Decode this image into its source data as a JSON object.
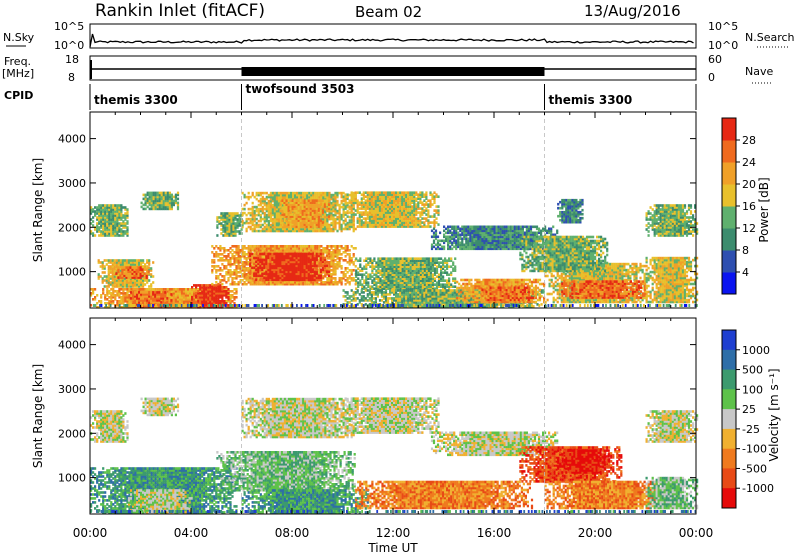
{
  "header": {
    "title": "Rankin Inlet (fitACF)",
    "beam": "Beam 02",
    "date": "13/Aug/2016"
  },
  "panels": {
    "nsky_label": "N.Sky",
    "nsky_ticks": [
      "10^5",
      "10^0"
    ],
    "nsearch_label": "N.Search",
    "nsearch_ticks": [
      "10^5",
      "10^0"
    ],
    "freq_label_1": "Freq.",
    "freq_label_2": "[MHz]",
    "freq_ticks": [
      "18",
      "8"
    ],
    "nave_label": "Nave",
    "nave_ticks": [
      "60",
      "0"
    ],
    "cpid_label": "CPID",
    "cpid_segments": [
      {
        "name": "themis 3300",
        "start_h": 0,
        "end_h": 6
      },
      {
        "name": "twofsound 3503",
        "start_h": 6,
        "end_h": 18
      },
      {
        "name": "themis 3300",
        "start_h": 18,
        "end_h": 24
      }
    ]
  },
  "chart_data": [
    {
      "type": "heatmap",
      "title": "",
      "xlabel": "Time UT",
      "ylabel": "Slant Range [km]",
      "xlim": [
        0,
        24
      ],
      "ylim": [
        180,
        4600
      ],
      "xticks": [
        "00:00",
        "04:00",
        "08:00",
        "12:00",
        "16:00",
        "20:00",
        "00:00"
      ],
      "yticks": [
        1000,
        2000,
        3000,
        4000
      ],
      "colorbar": {
        "label": "Power [dB]",
        "ticks": [
          "4",
          "8",
          "12",
          "16",
          "20",
          "24",
          "28"
        ],
        "colors": [
          "#0a14f0",
          "#2e4fb0",
          "#3c8c6e",
          "#5fb06e",
          "#e8c02c",
          "#f0a028",
          "#ef6a1e",
          "#e62814"
        ]
      },
      "regions": [
        {
          "t0": 0.0,
          "t1": 5.8,
          "r0": 180,
          "r1": 600,
          "level": 5
        },
        {
          "t0": 4.0,
          "t1": 5.5,
          "r0": 180,
          "r1": 700,
          "level": 7
        },
        {
          "t0": 1.5,
          "t1": 3.2,
          "r0": 200,
          "r1": 550,
          "level": 6
        },
        {
          "t0": 0.3,
          "t1": 2.5,
          "r0": 650,
          "r1": 1250,
          "level": 4
        },
        {
          "t0": 1.0,
          "t1": 2.3,
          "r0": 850,
          "r1": 1100,
          "level": 6
        },
        {
          "t0": 0.0,
          "t1": 1.5,
          "r0": 1800,
          "r1": 2500,
          "level": 3
        },
        {
          "t0": 2.0,
          "t1": 3.5,
          "r0": 2400,
          "r1": 2800,
          "level": 3
        },
        {
          "t0": 5.0,
          "t1": 6.0,
          "r0": 1800,
          "r1": 2300,
          "level": 3
        },
        {
          "t0": 4.8,
          "t1": 10.5,
          "r0": 700,
          "r1": 1600,
          "level": 5
        },
        {
          "t0": 6.3,
          "t1": 9.5,
          "r0": 800,
          "r1": 1400,
          "level": 7
        },
        {
          "t0": 6.0,
          "t1": 10.5,
          "r0": 1900,
          "r1": 2800,
          "level": 4
        },
        {
          "t0": 7.5,
          "t1": 9.5,
          "r0": 2000,
          "r1": 2600,
          "level": 5
        },
        {
          "t0": 10.5,
          "t1": 14.5,
          "r0": 600,
          "r1": 1300,
          "level": 3
        },
        {
          "t0": 10.0,
          "t1": 13.8,
          "r0": 2000,
          "r1": 2800,
          "level": 4
        },
        {
          "t0": 10.0,
          "t1": 18.0,
          "r0": 200,
          "r1": 600,
          "level": 3
        },
        {
          "t0": 14.5,
          "t1": 18.0,
          "r0": 300,
          "r1": 800,
          "level": 5
        },
        {
          "t0": 15.5,
          "t1": 17.5,
          "r0": 350,
          "r1": 650,
          "level": 6
        },
        {
          "t0": 13.5,
          "t1": 18.5,
          "r0": 1500,
          "r1": 2000,
          "level": 2
        },
        {
          "t0": 18.0,
          "t1": 22.0,
          "r0": 300,
          "r1": 1200,
          "level": 4
        },
        {
          "t0": 18.5,
          "t1": 22.0,
          "r0": 400,
          "r1": 800,
          "level": 6
        },
        {
          "t0": 17.0,
          "t1": 20.5,
          "r0": 1000,
          "r1": 1800,
          "level": 3
        },
        {
          "t0": 18.5,
          "t1": 19.5,
          "r0": 2100,
          "r1": 2600,
          "level": 2
        },
        {
          "t0": 22.0,
          "t1": 24.0,
          "r0": 1800,
          "r1": 2500,
          "level": 3
        },
        {
          "t0": 22.0,
          "t1": 24.0,
          "r0": 300,
          "r1": 1300,
          "level": 4
        }
      ]
    },
    {
      "type": "heatmap",
      "title": "",
      "xlabel": "Time UT",
      "ylabel": "Slant Range [km]",
      "xlim": [
        0,
        24
      ],
      "ylim": [
        180,
        4600
      ],
      "xticks": [
        "00:00",
        "04:00",
        "08:00",
        "12:00",
        "16:00",
        "20:00",
        "00:00"
      ],
      "yticks": [
        1000,
        2000,
        3000,
        4000
      ],
      "colorbar": {
        "label": "Velocity [m s⁻¹]",
        "ticks": [
          "1000",
          "500",
          "100",
          "25",
          "-25",
          "-100",
          "-500",
          "-1000"
        ],
        "colors": [
          "#1f3fd0",
          "#2e6ea8",
          "#3c9a6e",
          "#5ec24a",
          "#c8c8c8",
          "#f0b030",
          "#ef7a1e",
          "#e84a16",
          "#e60a0a"
        ]
      },
      "regions": [
        {
          "t0": 0.0,
          "t1": 5.8,
          "r0": 200,
          "r1": 1200,
          "level": 2
        },
        {
          "t0": 1.5,
          "t1": 4.0,
          "r0": 200,
          "r1": 700,
          "level": 4
        },
        {
          "t0": 0.0,
          "t1": 1.5,
          "r0": 1800,
          "r1": 2500,
          "level": 4
        },
        {
          "t0": 2.0,
          "t1": 3.5,
          "r0": 2400,
          "r1": 2800,
          "level": 4
        },
        {
          "t0": 5.0,
          "t1": 10.5,
          "r0": 700,
          "r1": 1600,
          "level": 3
        },
        {
          "t0": 6.0,
          "t1": 10.5,
          "r0": 1900,
          "r1": 2800,
          "level": 4
        },
        {
          "t0": 6.0,
          "t1": 11.0,
          "r0": 200,
          "r1": 700,
          "level": 2
        },
        {
          "t0": 10.0,
          "t1": 13.8,
          "r0": 2000,
          "r1": 2800,
          "level": 4
        },
        {
          "t0": 10.5,
          "t1": 17.5,
          "r0": 300,
          "r1": 900,
          "level": 6
        },
        {
          "t0": 13.5,
          "t1": 18.5,
          "r0": 1500,
          "r1": 2000,
          "level": 4
        },
        {
          "t0": 17.0,
          "t1": 21.0,
          "r0": 900,
          "r1": 1700,
          "level": 7
        },
        {
          "t0": 18.5,
          "t1": 20.5,
          "r0": 1100,
          "r1": 1600,
          "level": 8
        },
        {
          "t0": 18.0,
          "t1": 23.0,
          "r0": 300,
          "r1": 900,
          "level": 6
        },
        {
          "t0": 22.0,
          "t1": 24.0,
          "r0": 1800,
          "r1": 2500,
          "level": 4
        },
        {
          "t0": 22.0,
          "t1": 24.0,
          "r0": 300,
          "r1": 1000,
          "level": 3
        }
      ]
    }
  ]
}
